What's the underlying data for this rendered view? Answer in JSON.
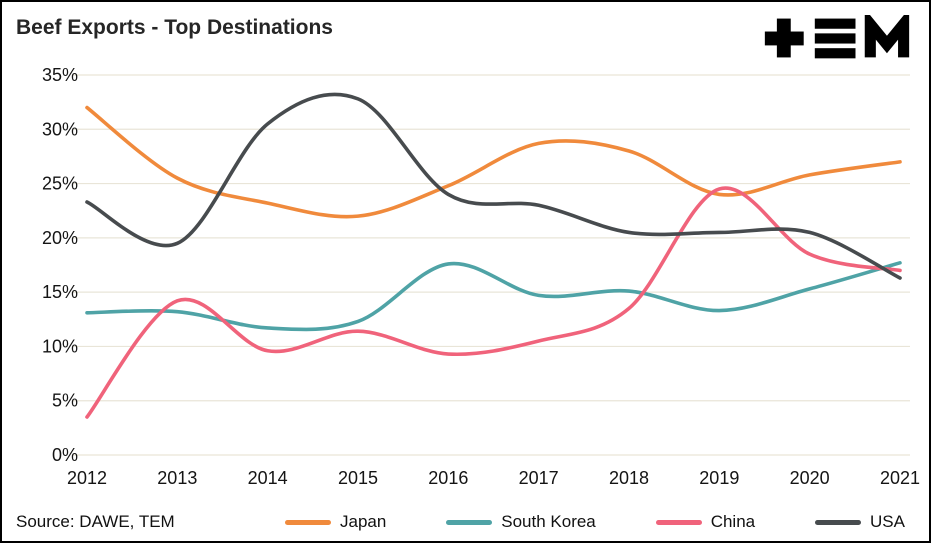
{
  "header": {
    "title": "Beef Exports - Top Destinations",
    "logo_name": "TEM"
  },
  "source": {
    "label": "Source: DAWE, TEM"
  },
  "chart_data": {
    "type": "line",
    "title": "Beef Exports - Top Destinations",
    "x": [
      2012,
      2013,
      2014,
      2015,
      2016,
      2017,
      2018,
      2019,
      2020,
      2021
    ],
    "series": [
      {
        "name": "Japan",
        "color": "#F08A3C",
        "values": [
          32.0,
          25.5,
          23.2,
          22.0,
          24.8,
          28.7,
          28.0,
          24.0,
          25.8,
          27.0
        ]
      },
      {
        "name": "South Korea",
        "color": "#4FA3A6",
        "values": [
          13.1,
          13.2,
          11.7,
          12.3,
          17.6,
          14.7,
          15.1,
          13.3,
          15.3,
          17.7
        ]
      },
      {
        "name": "China",
        "color": "#F0637B",
        "values": [
          3.5,
          14.2,
          9.6,
          11.4,
          9.3,
          10.5,
          13.5,
          24.5,
          18.5,
          17.0
        ]
      },
      {
        "name": "USA",
        "color": "#474B4E",
        "values": [
          23.3,
          19.5,
          30.5,
          32.8,
          24.0,
          23.0,
          20.5,
          20.5,
          20.5,
          16.3
        ]
      }
    ],
    "xlabel": "",
    "ylabel": "",
    "ylim": [
      0,
      35
    ],
    "yticks": [
      0,
      5,
      10,
      15,
      20,
      25,
      30,
      35
    ],
    "ytick_suffix": "%",
    "grid": "horizontal",
    "grid_color": "#e9e5d8",
    "legend_position": "bottom"
  }
}
